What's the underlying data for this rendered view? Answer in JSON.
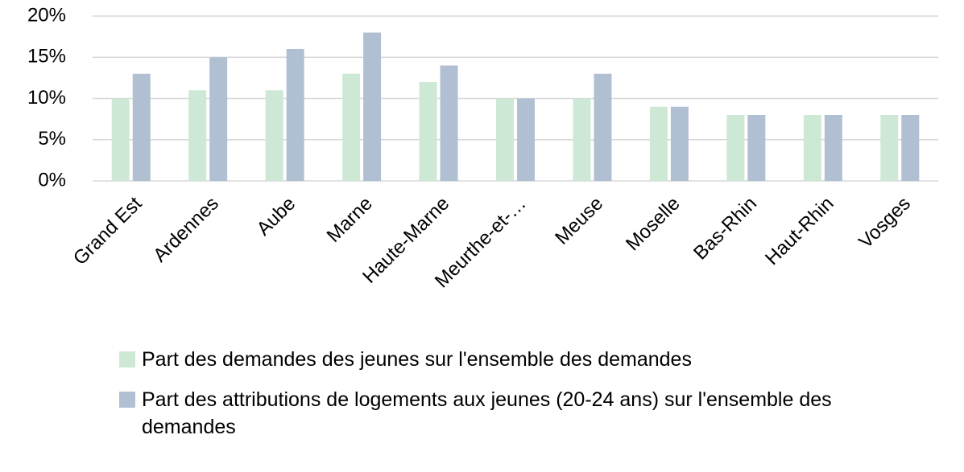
{
  "chart_data": {
    "type": "bar",
    "categories": [
      "Grand Est",
      "Ardennes",
      "Aube",
      "Marne",
      "Haute-Marne",
      "Meurthe-et-…",
      "Meuse",
      "Moselle",
      "Bas-Rhin",
      "Haut-Rhin",
      "Vosges"
    ],
    "series": [
      {
        "name": "Part des demandes des jeunes sur l'ensemble des demandes",
        "color": "#cde8d5",
        "values": [
          10,
          11,
          11,
          13,
          12,
          10,
          10,
          9,
          8,
          8,
          8
        ]
      },
      {
        "name": "Part des attributions de logements aux jeunes (20-24 ans) sur l'ensemble des demandes",
        "color": "#b1bfd2",
        "values": [
          13,
          15,
          16,
          18,
          14,
          10,
          13,
          9,
          8,
          8,
          8
        ]
      }
    ],
    "ylim": [
      0,
      20
    ],
    "yticks": [
      {
        "value": 0,
        "label": "0%"
      },
      {
        "value": 5,
        "label": "5%"
      },
      {
        "value": 10,
        "label": "10%"
      },
      {
        "value": 15,
        "label": "15%"
      },
      {
        "value": 20,
        "label": "20%"
      }
    ],
    "grid": true
  }
}
